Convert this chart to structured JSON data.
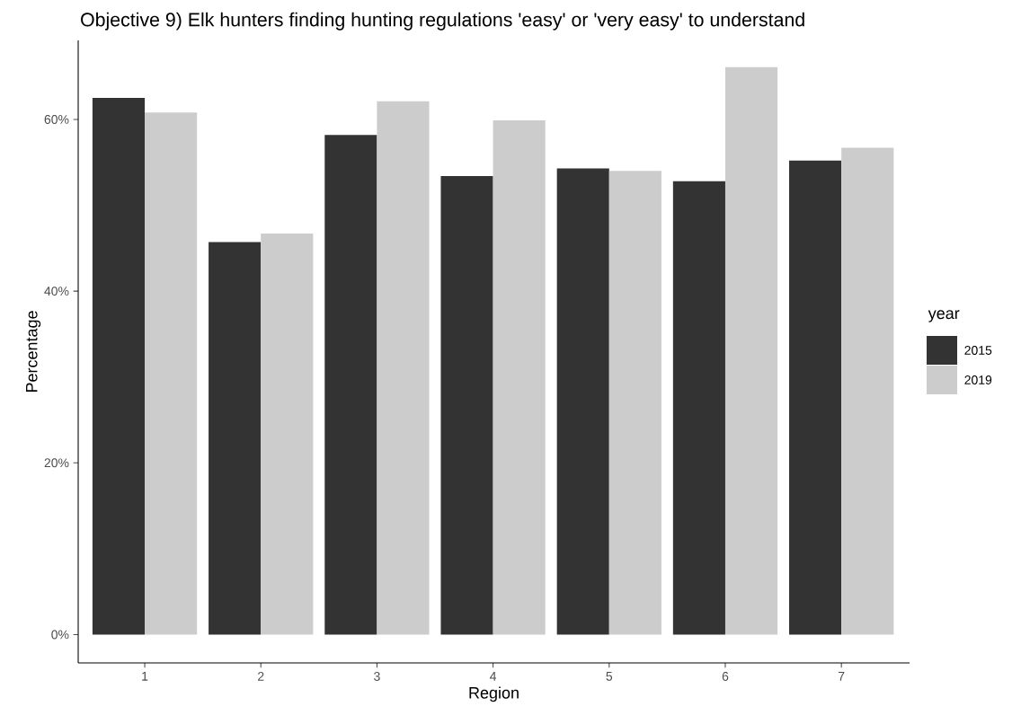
{
  "chart_data": {
    "type": "bar",
    "title": "Objective 9) Elk hunters finding hunting regulations 'easy' or 'very easy' to understand",
    "xlabel": "Region",
    "ylabel": "Percentage",
    "legend_title": "year",
    "legend": "right",
    "categories": [
      "1",
      "2",
      "3",
      "4",
      "5",
      "6",
      "7"
    ],
    "series": [
      {
        "name": "2015",
        "color": "#333333",
        "values": [
          62.5,
          45.7,
          58.2,
          53.4,
          54.3,
          52.8,
          55.2
        ]
      },
      {
        "name": "2019",
        "color": "#cccccc",
        "values": [
          60.8,
          46.7,
          62.1,
          59.9,
          54.0,
          66.1,
          56.7
        ]
      }
    ],
    "ylim": [
      -3.3,
      69.2
    ],
    "yticks": [
      {
        "value": 0,
        "label": "0%"
      },
      {
        "value": 20,
        "label": "20%"
      },
      {
        "value": 40,
        "label": "40%"
      },
      {
        "value": 60,
        "label": "60%"
      }
    ]
  }
}
